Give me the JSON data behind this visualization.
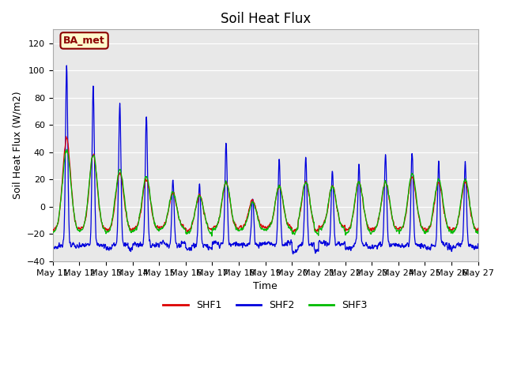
{
  "title": "Soil Heat Flux",
  "ylabel": "Soil Heat Flux (W/m2)",
  "xlabel": "Time",
  "annotation": "BA_met",
  "ylim": [
    -40,
    130
  ],
  "yticks": [
    -40,
    -20,
    0,
    20,
    40,
    60,
    80,
    100,
    120
  ],
  "colors": {
    "SHF1": "#dd0000",
    "SHF2": "#0000dd",
    "SHF3": "#00bb00"
  },
  "bg_color": "#e8e8e8",
  "n_days": 16,
  "start_day": 11,
  "pts_per_day": 96,
  "shf2_peaks": [
    104,
    91,
    77,
    68,
    20,
    17,
    48,
    8,
    35,
    37,
    28,
    32,
    40,
    41,
    33
  ],
  "shf1_peaks": [
    50,
    38,
    25,
    20,
    10,
    8,
    18,
    5,
    15,
    18,
    15,
    18,
    18,
    22,
    18
  ],
  "shf3_peaks": [
    42,
    38,
    27,
    22,
    10,
    8,
    18,
    3,
    15,
    18,
    15,
    18,
    18,
    24,
    20
  ],
  "shf2_night": -28,
  "shf1_night": -16,
  "shf3_night": -18
}
